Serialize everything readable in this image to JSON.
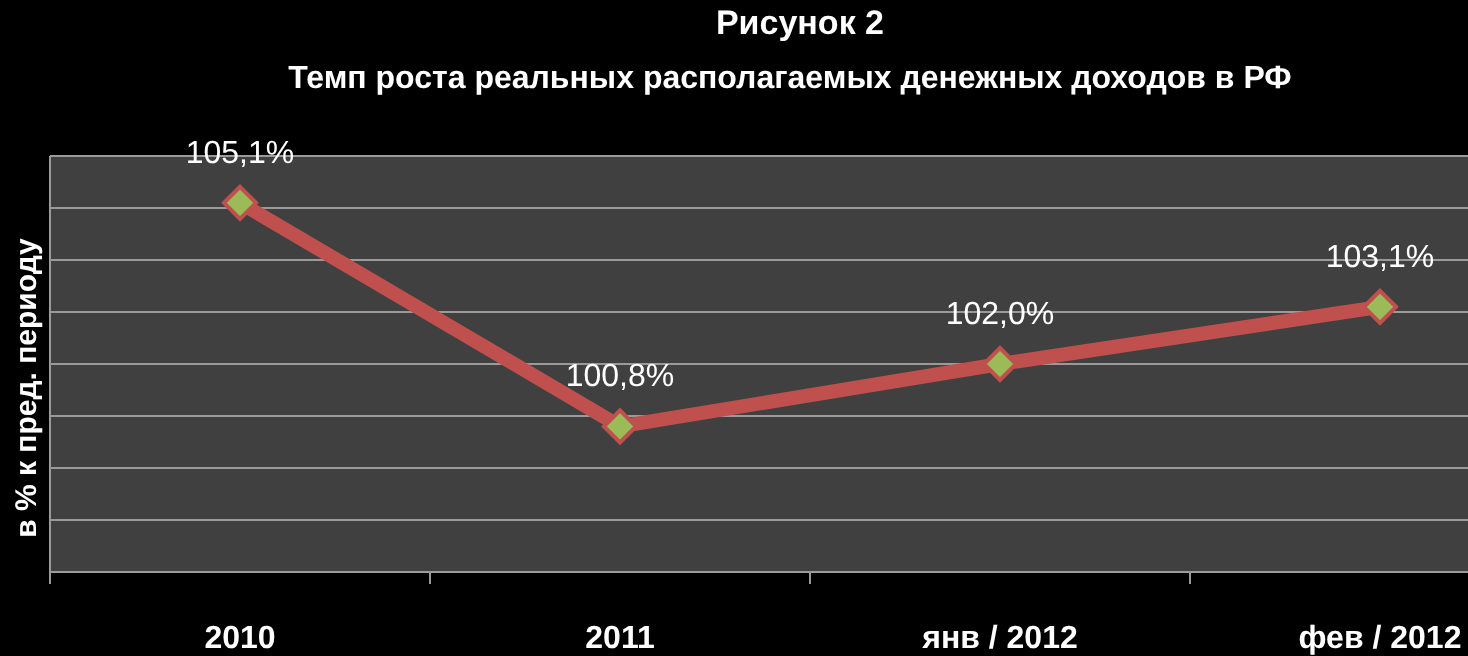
{
  "chart_data": {
    "type": "line",
    "title": "Рисунок 2",
    "subtitle": "Темп роста реальных располагаемых денежных доходов в РФ",
    "ylabel": "в % к пред. периоду",
    "categories": [
      "2010",
      "2011",
      "янв / 2012",
      "фев / 2012"
    ],
    "series": [
      {
        "color": "#c0504d",
        "values": [
          105.1,
          100.8,
          102.0,
          103.1
        ],
        "value_labels": [
          "105,1%",
          "100,8%",
          "102,0%",
          "103,1%"
        ]
      }
    ],
    "ylim": [
      98,
      106
    ],
    "yticks": [
      {
        "value": 98,
        "label": null
      },
      {
        "value": 99,
        "label": null
      },
      {
        "value": 100,
        "label": null
      },
      {
        "value": 101,
        "label": null
      },
      {
        "value": 102,
        "label": null
      },
      {
        "value": 103,
        "label": null
      },
      {
        "value": 104,
        "label": null
      },
      {
        "value": 105,
        "label": null
      },
      {
        "value": 106,
        "label": null
      }
    ],
    "grid": "y",
    "marker": "diamond",
    "line_style": "solid",
    "tick_labels": "x"
  }
}
